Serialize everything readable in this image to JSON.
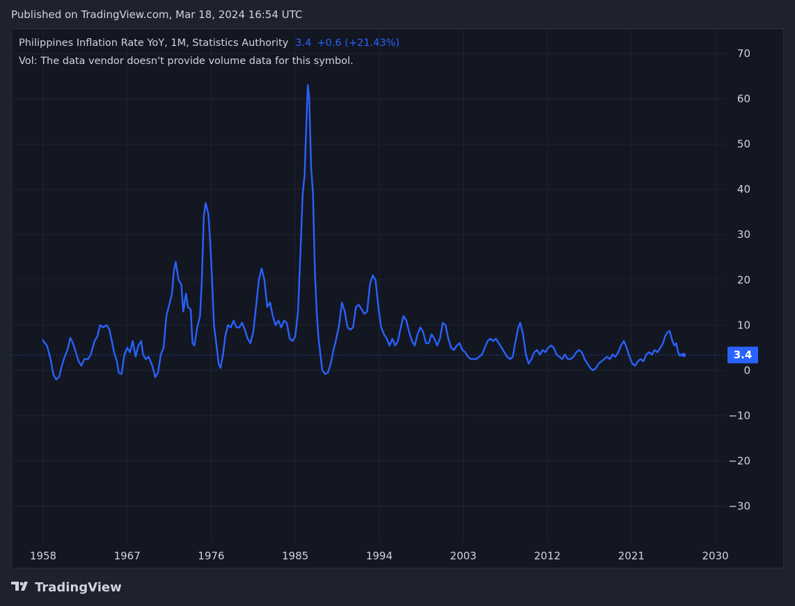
{
  "header": {
    "published": "Published on TradingView.com, Mar 18, 2024 16:54 UTC"
  },
  "legend": {
    "symbol": "Philippines Inflation Rate YoY, 1M, Statistics Authority",
    "value": "3.4",
    "change": "+0.6 (+21.43%)",
    "volume_note": "Vol: The data vendor doesn't provide volume data for this symbol."
  },
  "price_label": "3.4",
  "brand": {
    "name": "TradingView",
    "icon": "tradingview-logo-icon"
  },
  "colors": {
    "line": "#2962ff",
    "background": "#131722",
    "grid": "#1f2433",
    "text": "#d1d4dc"
  },
  "chart_data": {
    "type": "line",
    "title": "",
    "xlabel": "",
    "ylabel": "",
    "grid": true,
    "x_ticks": [
      "1958",
      "1967",
      "1976",
      "1985",
      "1994",
      "2003",
      "2012",
      "2021",
      "2030"
    ],
    "y_ticks": [
      "70",
      "60",
      "50",
      "40",
      "30",
      "20",
      "10",
      "0",
      "−10",
      "−20",
      "−30"
    ],
    "xlim": [
      1956.6,
      2031.0
    ],
    "ylim": [
      -38,
      72
    ],
    "last_value": 3.4,
    "series": [
      {
        "values": [
          [
            1957.9,
            6.8
          ],
          [
            1958.4,
            5.5
          ],
          [
            1958.8,
            2.5
          ],
          [
            1959.1,
            -1.0
          ],
          [
            1959.4,
            -2.0
          ],
          [
            1959.7,
            -1.5
          ],
          [
            1960.0,
            1.0
          ],
          [
            1960.3,
            3.0
          ],
          [
            1960.6,
            4.5
          ],
          [
            1960.9,
            7.2
          ],
          [
            1961.2,
            6.0
          ],
          [
            1961.5,
            4.0
          ],
          [
            1961.8,
            2.0
          ],
          [
            1962.1,
            1.0
          ],
          [
            1962.4,
            2.5
          ],
          [
            1962.8,
            2.5
          ],
          [
            1963.1,
            3.5
          ],
          [
            1963.5,
            6.5
          ],
          [
            1963.8,
            7.5
          ],
          [
            1964.1,
            10.0
          ],
          [
            1964.4,
            9.5
          ],
          [
            1964.8,
            10.0
          ],
          [
            1965.1,
            9.0
          ],
          [
            1965.3,
            7.0
          ],
          [
            1965.6,
            4.0
          ],
          [
            1965.9,
            2.0
          ],
          [
            1966.1,
            -0.5
          ],
          [
            1966.4,
            -0.8
          ],
          [
            1966.7,
            3.5
          ],
          [
            1967.0,
            5.0
          ],
          [
            1967.3,
            4.0
          ],
          [
            1967.6,
            6.5
          ],
          [
            1967.9,
            3.0
          ],
          [
            1968.2,
            5.5
          ],
          [
            1968.5,
            6.5
          ],
          [
            1968.7,
            3.5
          ],
          [
            1969.0,
            2.5
          ],
          [
            1969.3,
            3.0
          ],
          [
            1969.7,
            1.0
          ],
          [
            1970.0,
            -1.5
          ],
          [
            1970.3,
            -0.5
          ],
          [
            1970.6,
            3.5
          ],
          [
            1970.9,
            5.0
          ],
          [
            1971.2,
            12.0
          ],
          [
            1971.5,
            14.5
          ],
          [
            1971.8,
            17.0
          ],
          [
            1972.0,
            22.0
          ],
          [
            1972.2,
            24.0
          ],
          [
            1972.5,
            20.0
          ],
          [
            1972.8,
            19.0
          ],
          [
            1973.0,
            13.0
          ],
          [
            1973.3,
            17.0
          ],
          [
            1973.5,
            14.0
          ],
          [
            1973.8,
            13.5
          ],
          [
            1974.0,
            6.0
          ],
          [
            1974.2,
            5.5
          ],
          [
            1974.5,
            9.5
          ],
          [
            1974.8,
            12.0
          ],
          [
            1975.0,
            20.0
          ],
          [
            1975.2,
            34.0
          ],
          [
            1975.4,
            37.0
          ],
          [
            1975.7,
            34.5
          ],
          [
            1975.9,
            28.0
          ],
          [
            1976.1,
            20.0
          ],
          [
            1976.3,
            10.0
          ],
          [
            1976.6,
            5.0
          ],
          [
            1976.8,
            1.5
          ],
          [
            1977.0,
            0.5
          ],
          [
            1977.3,
            4.0
          ],
          [
            1977.5,
            7.5
          ],
          [
            1977.8,
            10.0
          ],
          [
            1978.1,
            9.5
          ],
          [
            1978.4,
            11.0
          ],
          [
            1978.7,
            9.5
          ],
          [
            1979.0,
            9.5
          ],
          [
            1979.3,
            10.5
          ],
          [
            1979.6,
            9.0
          ],
          [
            1979.9,
            7.0
          ],
          [
            1980.2,
            6.0
          ],
          [
            1980.5,
            8.5
          ],
          [
            1980.8,
            14.0
          ],
          [
            1981.1,
            20.0
          ],
          [
            1981.4,
            22.5
          ],
          [
            1981.7,
            20.0
          ],
          [
            1982.0,
            14.0
          ],
          [
            1982.3,
            15.0
          ],
          [
            1982.6,
            12.0
          ],
          [
            1982.9,
            10.0
          ],
          [
            1983.2,
            11.0
          ],
          [
            1983.5,
            9.5
          ],
          [
            1983.8,
            11.0
          ],
          [
            1984.1,
            10.5
          ],
          [
            1984.4,
            7.0
          ],
          [
            1984.7,
            6.5
          ],
          [
            1985.0,
            7.5
          ],
          [
            1985.3,
            13.0
          ],
          [
            1985.6,
            28.0
          ],
          [
            1985.8,
            39.0
          ],
          [
            1986.0,
            43.0
          ],
          [
            1986.2,
            55.0
          ],
          [
            1986.35,
            63.0
          ],
          [
            1986.5,
            60.0
          ],
          [
            1986.7,
            45.0
          ],
          [
            1986.9,
            39.0
          ],
          [
            1987.1,
            22.0
          ],
          [
            1987.3,
            13.0
          ],
          [
            1987.5,
            7.0
          ],
          [
            1987.7,
            3.5
          ],
          [
            1987.9,
            0.0
          ],
          [
            1988.2,
            -0.8
          ],
          [
            1988.5,
            -0.5
          ],
          [
            1988.8,
            1.5
          ],
          [
            1989.1,
            4.5
          ],
          [
            1989.4,
            7.0
          ],
          [
            1989.7,
            10.0
          ],
          [
            1990.0,
            15.0
          ],
          [
            1990.3,
            13.0
          ],
          [
            1990.6,
            9.5
          ],
          [
            1990.9,
            9.0
          ],
          [
            1991.2,
            9.5
          ],
          [
            1991.5,
            14.0
          ],
          [
            1991.8,
            14.5
          ],
          [
            1992.1,
            13.5
          ],
          [
            1992.4,
            12.5
          ],
          [
            1992.7,
            13.0
          ],
          [
            1993.0,
            19.0
          ],
          [
            1993.3,
            21.0
          ],
          [
            1993.6,
            20.0
          ],
          [
            1993.9,
            14.0
          ],
          [
            1994.2,
            9.5
          ],
          [
            1994.5,
            8.0
          ],
          [
            1994.8,
            7.0
          ],
          [
            1995.1,
            5.5
          ],
          [
            1995.4,
            7.0
          ],
          [
            1995.7,
            5.5
          ],
          [
            1996.0,
            6.5
          ],
          [
            1996.3,
            9.5
          ],
          [
            1996.6,
            12.0
          ],
          [
            1996.9,
            11.0
          ],
          [
            1997.2,
            8.5
          ],
          [
            1997.5,
            6.5
          ],
          [
            1997.8,
            5.5
          ],
          [
            1998.1,
            8.0
          ],
          [
            1998.4,
            9.5
          ],
          [
            1998.7,
            8.5
          ],
          [
            1999.0,
            6.0
          ],
          [
            1999.3,
            6.0
          ],
          [
            1999.6,
            8.0
          ],
          [
            1999.9,
            7.0
          ],
          [
            2000.2,
            5.5
          ],
          [
            2000.5,
            7.0
          ],
          [
            2000.8,
            10.5
          ],
          [
            2001.1,
            10.0
          ],
          [
            2001.4,
            7.0
          ],
          [
            2001.7,
            5.0
          ],
          [
            2002.0,
            4.5
          ],
          [
            2002.3,
            5.5
          ],
          [
            2002.6,
            6.0
          ],
          [
            2002.9,
            4.5
          ],
          [
            2003.2,
            4.0
          ],
          [
            2003.5,
            3.0
          ],
          [
            2003.8,
            2.5
          ],
          [
            2004.1,
            2.5
          ],
          [
            2004.4,
            2.5
          ],
          [
            2004.7,
            3.0
          ],
          [
            2005.0,
            3.5
          ],
          [
            2005.3,
            5.0
          ],
          [
            2005.6,
            6.5
          ],
          [
            2005.9,
            7.0
          ],
          [
            2006.2,
            6.5
          ],
          [
            2006.5,
            7.0
          ],
          [
            2006.8,
            6.0
          ],
          [
            2007.1,
            5.0
          ],
          [
            2007.4,
            4.0
          ],
          [
            2007.7,
            3.0
          ],
          [
            2008.0,
            2.5
          ],
          [
            2008.3,
            3.0
          ],
          [
            2008.6,
            6.5
          ],
          [
            2008.9,
            9.5
          ],
          [
            2009.1,
            10.5
          ],
          [
            2009.4,
            8.0
          ],
          [
            2009.7,
            3.5
          ],
          [
            2010.0,
            1.5
          ],
          [
            2010.3,
            2.5
          ],
          [
            2010.6,
            4.0
          ],
          [
            2010.9,
            4.5
          ],
          [
            2011.2,
            3.5
          ],
          [
            2011.5,
            4.5
          ],
          [
            2011.8,
            4.0
          ],
          [
            2012.1,
            5.0
          ],
          [
            2012.4,
            5.5
          ],
          [
            2012.7,
            5.0
          ],
          [
            2013.0,
            3.5
          ],
          [
            2013.3,
            3.0
          ],
          [
            2013.6,
            2.5
          ],
          [
            2013.9,
            3.5
          ],
          [
            2014.2,
            2.5
          ],
          [
            2014.5,
            2.5
          ],
          [
            2014.8,
            3.0
          ],
          [
            2015.1,
            4.0
          ],
          [
            2015.4,
            4.5
          ],
          [
            2015.7,
            4.0
          ],
          [
            2016.0,
            2.5
          ],
          [
            2016.3,
            1.5
          ],
          [
            2016.6,
            0.5
          ],
          [
            2016.9,
            0.0
          ],
          [
            2017.2,
            0.5
          ],
          [
            2017.5,
            1.5
          ],
          [
            2017.8,
            2.0
          ],
          [
            2018.1,
            2.5
          ],
          [
            2018.4,
            3.0
          ],
          [
            2018.7,
            2.5
          ],
          [
            2019.0,
            3.5
          ],
          [
            2019.3,
            3.0
          ],
          [
            2019.6,
            4.0
          ],
          [
            2019.9,
            5.5
          ],
          [
            2020.2,
            6.5
          ],
          [
            2020.5,
            5.0
          ],
          [
            2020.8,
            3.0
          ],
          [
            2021.1,
            1.5
          ],
          [
            2021.4,
            1.0
          ],
          [
            2021.7,
            2.0
          ],
          [
            2022.0,
            2.5
          ],
          [
            2022.3,
            2.0
          ],
          [
            2022.6,
            3.5
          ],
          [
            2022.9,
            4.0
          ],
          [
            2023.2,
            3.5
          ],
          [
            2023.5,
            4.5
          ],
          [
            2023.8,
            4.0
          ],
          [
            2024.1,
            5.0
          ],
          [
            2024.4,
            6.0
          ],
          [
            2024.6,
            7.5
          ],
          [
            2024.9,
            8.5
          ],
          [
            2025.1,
            8.7
          ],
          [
            2025.4,
            6.5
          ],
          [
            2025.6,
            5.5
          ],
          [
            2025.8,
            6.0
          ],
          [
            2026.0,
            4.0
          ],
          [
            2026.2,
            3.2
          ],
          [
            2026.4,
            3.6
          ],
          [
            2026.6,
            3.4
          ]
        ]
      }
    ]
  }
}
